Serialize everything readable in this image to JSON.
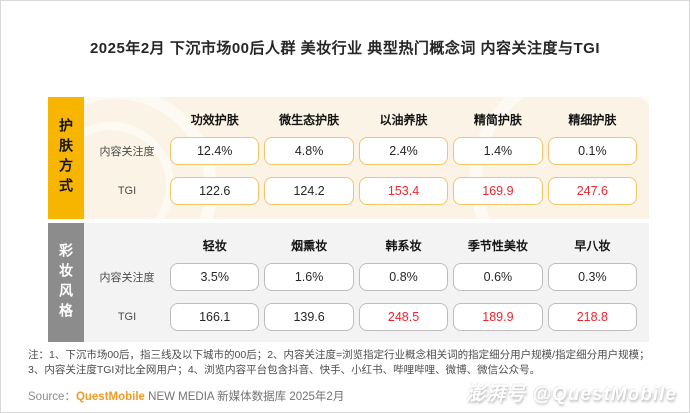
{
  "title": "2025年2月 下沉市场00后人群 美妆行业 典型热门概念词 内容关注度与TGI",
  "chart_data": {
    "type": "table",
    "title": "2025年2月 下沉市场00后人群 美妆行业 典型热门概念词 内容关注度与TGI",
    "groups": [
      {
        "group": "护肤方式",
        "categories": [
          "功效护肤",
          "微生态护肤",
          "以油养肤",
          "精简护肤",
          "精细护肤"
        ],
        "series": [
          {
            "name": "内容关注度",
            "values": [
              "12.4%",
              "4.8%",
              "2.4%",
              "1.4%",
              "0.1%"
            ]
          },
          {
            "name": "TGI",
            "values": [
              "122.6",
              "124.2",
              "153.4",
              "169.9",
              "247.6"
            ],
            "highlighted_red": [
              false,
              false,
              true,
              true,
              true
            ]
          }
        ]
      },
      {
        "group": "彩妆风格",
        "categories": [
          "轻妆",
          "烟熏妆",
          "韩系妆",
          "季节性美妆",
          "早八妆"
        ],
        "series": [
          {
            "name": "内容关注度",
            "values": [
              "3.5%",
              "1.6%",
              "0.8%",
              "0.6%",
              "0.3%"
            ]
          },
          {
            "name": "TGI",
            "values": [
              "166.1",
              "139.6",
              "248.5",
              "189.9",
              "218.8"
            ],
            "highlighted_red": [
              false,
              false,
              true,
              true,
              true
            ]
          }
        ]
      }
    ],
    "legend_position": "none",
    "grid": false
  },
  "footnote": "注：1、下沉市场00后，指三线及以下城市的00后；2、内容关注度=浏览指定行业概念相关词的指定细分用户规模/指定细分用户规模；3、内容关注度TGI对比全网用户；4、浏览内容平台包含抖音、快手、小红书、哔哩哔哩、微博、微信公众号。",
  "source": {
    "prefix": "Source：",
    "brand": "QuestMobile",
    "suffix": " NEW MEDIA  新媒体数据库 2025年2月"
  },
  "watermark": "澎湃号 @QuestMobile",
  "colors": {
    "accent_yellow": "#F8B500",
    "tab_gray": "#8C8C8C",
    "skincare_bg": "#FBF4E6",
    "makeup_bg": "#F3F3F3",
    "skincare_box_border": "#F2C566",
    "makeup_box_border": "#BDBDBD",
    "tgi_red": "#F5222D",
    "brand_orange": "#F59A23"
  }
}
